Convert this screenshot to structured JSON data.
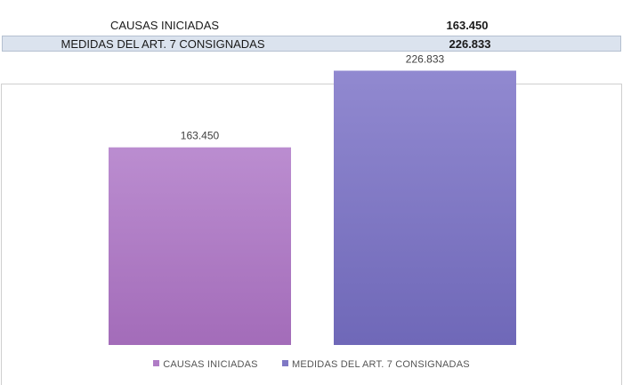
{
  "summary": {
    "rows": [
      {
        "label": "CAUSAS INICIADAS",
        "value": "163.450"
      },
      {
        "label": "MEDIDAS DEL ART. 7 CONSIGNADAS",
        "value": "226.833"
      }
    ]
  },
  "chart_data": {
    "type": "bar",
    "categories": [
      "CAUSAS INICIADAS",
      "MEDIDAS DEL ART. 7 CONSIGNADAS"
    ],
    "values": [
      163450,
      226833
    ],
    "data_labels": [
      "163.450",
      "226.833"
    ],
    "colors": [
      "#b07cc6",
      "#7f78c5"
    ],
    "legend": {
      "position": "bottom",
      "entries": [
        "CAUSAS INICIADAS",
        "MEDIDAS DEL ART. 7 CONSIGNADAS"
      ]
    },
    "ylim": [
      0,
      250000
    ],
    "grid": false,
    "title": "",
    "xlabel": "",
    "ylabel": ""
  }
}
